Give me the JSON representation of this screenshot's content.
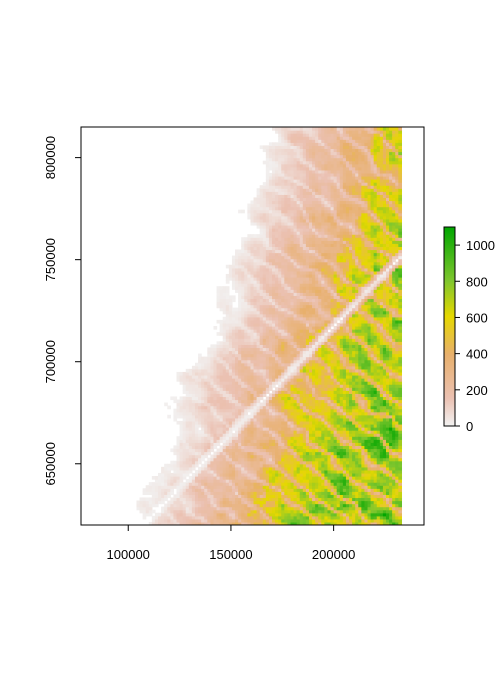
{
  "chart_data": {
    "type": "heatmap",
    "title": "",
    "xlabel": "",
    "ylabel": "",
    "xlim": [
      77000,
      244000
    ],
    "ylim": [
      620000,
      815000
    ],
    "x_ticks": [
      {
        "value": 100000,
        "label": "100000"
      },
      {
        "value": 150000,
        "label": "150000"
      },
      {
        "value": 200000,
        "label": "200000"
      }
    ],
    "y_ticks": [
      {
        "value": 650000,
        "label": "650000"
      },
      {
        "value": 700000,
        "label": "700000"
      },
      {
        "value": 750000,
        "label": "750000"
      },
      {
        "value": 800000,
        "label": "800000"
      }
    ],
    "raster_extent": {
      "x": [
        77000,
        233000
      ],
      "y": [
        620000,
        815000
      ]
    },
    "legend": {
      "position": "right",
      "range": [
        0,
        1100
      ],
      "ticks": [
        {
          "value": 0,
          "label": "0"
        },
        {
          "value": 200,
          "label": "200"
        },
        {
          "value": 400,
          "label": "400"
        },
        {
          "value": 600,
          "label": "600"
        },
        {
          "value": 800,
          "label": "800"
        },
        {
          "value": 1000,
          "label": "1000"
        }
      ]
    },
    "color_scale": [
      {
        "value": 0,
        "color": "#f2f2f2"
      },
      {
        "value": 150,
        "color": "#ebc1b2"
      },
      {
        "value": 400,
        "color": "#e8b06c"
      },
      {
        "value": 600,
        "color": "#e6d800"
      },
      {
        "value": 800,
        "color": "#7fc62e"
      },
      {
        "value": 1100,
        "color": "#00a600"
      }
    ]
  }
}
